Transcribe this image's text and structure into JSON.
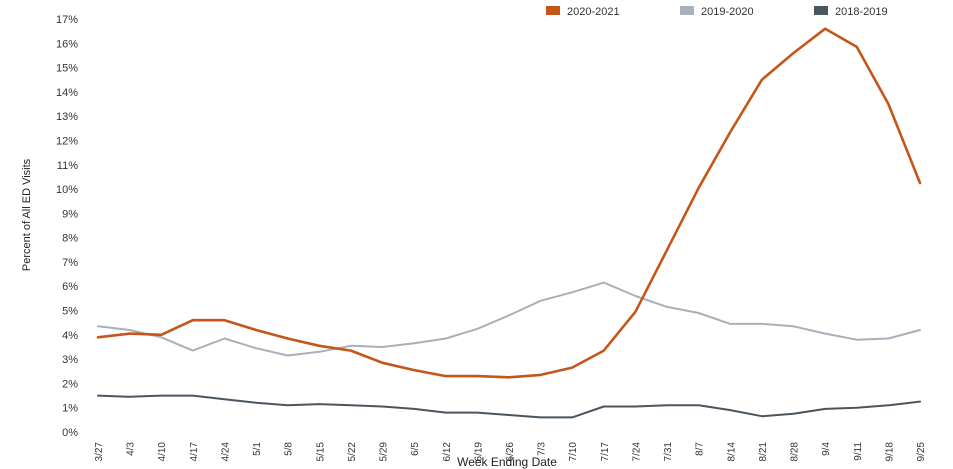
{
  "chart_data": {
    "type": "line",
    "xlabel": "Week Ending Date",
    "ylabel": "Percent of All ED Visits",
    "ylim": [
      0,
      17
    ],
    "y_ticks": [
      "0%",
      "1%",
      "2%",
      "3%",
      "4%",
      "5%",
      "6%",
      "7%",
      "8%",
      "9%",
      "10%",
      "11%",
      "12%",
      "13%",
      "14%",
      "15%",
      "16%",
      "17%"
    ],
    "grid": false,
    "legend_position": "top-right",
    "categories": [
      "3/27",
      "4/3",
      "4/10",
      "4/17",
      "4/24",
      "5/1",
      "5/8",
      "5/15",
      "5/22",
      "5/29",
      "6/5",
      "6/12",
      "6/19",
      "6/26",
      "7/3",
      "7/10",
      "7/17",
      "7/24",
      "7/31",
      "8/7",
      "8/14",
      "8/21",
      "8/28",
      "9/4",
      "9/11",
      "9/18",
      "9/25"
    ],
    "series": [
      {
        "name": "2020-2021",
        "color": "#c4561a",
        "values": [
          3.9,
          4.05,
          4.0,
          4.6,
          4.6,
          4.2,
          3.85,
          3.55,
          3.35,
          2.85,
          2.55,
          2.3,
          2.3,
          2.25,
          2.35,
          2.65,
          3.35,
          4.95,
          7.5,
          10.05,
          12.35,
          14.5,
          15.6,
          16.6,
          15.85,
          13.5,
          10.25
        ]
      },
      {
        "name": "2019-2020",
        "color": "#a9b0b9",
        "values": [
          4.35,
          4.2,
          3.9,
          3.35,
          3.85,
          3.45,
          3.15,
          3.3,
          3.55,
          3.5,
          3.65,
          3.85,
          4.25,
          4.8,
          5.4,
          5.75,
          6.15,
          5.6,
          5.15,
          4.9,
          4.45,
          4.45,
          4.35,
          4.05,
          3.8,
          3.85,
          4.2
        ]
      },
      {
        "name": "2018-2019",
        "color": "#4a5560",
        "values": [
          1.5,
          1.45,
          1.5,
          1.5,
          1.35,
          1.2,
          1.1,
          1.15,
          1.1,
          1.05,
          0.95,
          0.8,
          0.8,
          0.7,
          0.6,
          0.6,
          1.05,
          1.05,
          1.1,
          1.1,
          0.9,
          0.65,
          0.75,
          0.95,
          1.0,
          1.1,
          1.25
        ]
      }
    ]
  }
}
